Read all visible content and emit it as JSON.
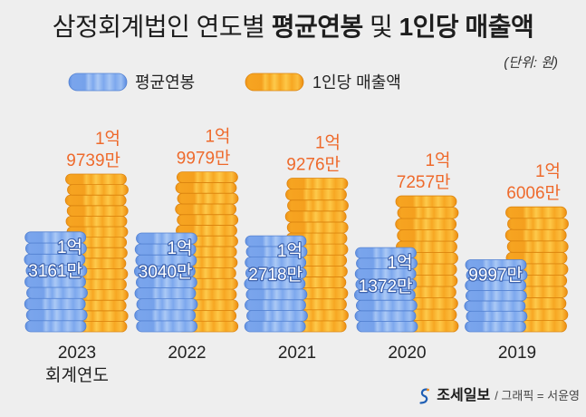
{
  "title": {
    "prefix": "삼정회계법인 연도별",
    "highlight1": "평균연봉",
    "connector": "및",
    "highlight2": "1인당 매출액"
  },
  "legend_icons": [
    "blue-coin-stack-icon",
    "orange-coin-stack-icon"
  ],
  "chart_data": {
    "type": "bar",
    "unit_label": "(단위: 원)",
    "legend_position": "top-left",
    "categories": [
      "2023",
      "2022",
      "2021",
      "2020",
      "2019"
    ],
    "category_sublabels": [
      "회계연도",
      "",
      "",
      "",
      ""
    ],
    "series": [
      {
        "name": "평균연봉",
        "color": "#7aa5ec",
        "values": [
          131610000,
          130400000,
          127180000,
          113720000,
          99970000
        ],
        "labels": [
          [
            "1억",
            "3161만"
          ],
          [
            "1억",
            "3040만"
          ],
          [
            "1억",
            "2718만"
          ],
          [
            "1억",
            "1372만"
          ],
          [
            "9997만"
          ]
        ]
      },
      {
        "name": "1인당 매출액",
        "color": "#f7a722",
        "values": [
          197390000,
          199790000,
          192760000,
          172570000,
          160060000
        ],
        "labels": [
          [
            "1억",
            "9739만"
          ],
          [
            "1억",
            "9979만"
          ],
          [
            "1억",
            "9276만"
          ],
          [
            "1억",
            "7257만"
          ],
          [
            "1억",
            "6006만"
          ]
        ]
      }
    ]
  },
  "footer": {
    "logo": "joseilbo-logo-icon",
    "brand": "조세일보",
    "credit": "/ 그래픽 = 서윤영"
  }
}
